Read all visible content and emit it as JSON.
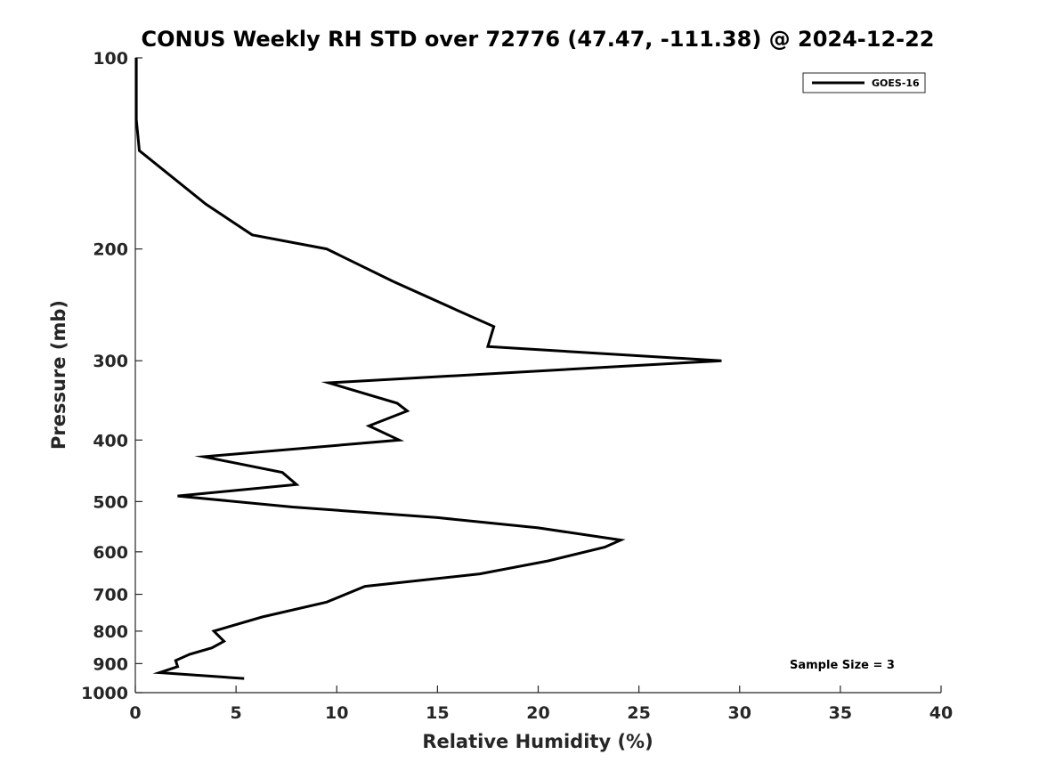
{
  "chart_data": {
    "type": "line",
    "title": "CONUS Weekly RH STD over 72776 (47.47, -111.38) @ 2024-12-22",
    "xlabel": "Relative Humidity (%)",
    "ylabel": "Pressure (mb)",
    "xlim": [
      0,
      40
    ],
    "ylim": [
      100,
      1000
    ],
    "yscale": "log",
    "y_reversed": true,
    "x_ticks": [
      "0",
      "5",
      "10",
      "15",
      "20",
      "25",
      "30",
      "35",
      "40"
    ],
    "y_ticks": [
      "100",
      "200",
      "300",
      "400",
      "500",
      "600",
      "700",
      "800",
      "900",
      "1000"
    ],
    "grid": false,
    "legend_position": "top-right",
    "annotation": "Sample Size = 3",
    "series": [
      {
        "name": "GOES-16",
        "color": "#000000",
        "x": [
          0.05,
          0.05,
          0.2,
          3.5,
          5.8,
          9.5,
          12.8,
          16.0,
          17.8,
          17.5,
          29.1,
          9.6,
          13.0,
          13.5,
          11.6,
          13.1,
          3.4,
          7.3,
          8.0,
          2.1,
          7.8,
          15.0,
          20.0,
          24.1,
          23.3,
          20.5,
          17.1,
          11.4,
          9.5,
          6.3,
          3.9,
          4.4,
          3.8,
          2.7,
          2.0,
          2.1,
          1.2,
          5.4
        ],
        "y": [
          100,
          125,
          140,
          170,
          190,
          200,
          225,
          250,
          265,
          285,
          300,
          325,
          350,
          360,
          380,
          400,
          425,
          450,
          470,
          490,
          510,
          530,
          550,
          575,
          590,
          620,
          650,
          680,
          720,
          760,
          800,
          830,
          850,
          870,
          890,
          910,
          930,
          950
        ]
      }
    ]
  }
}
